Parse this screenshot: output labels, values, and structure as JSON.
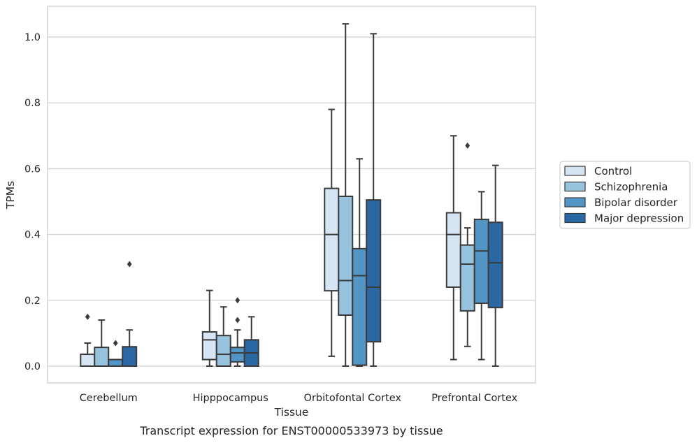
{
  "caption": "Transcript expression for ENST00000533973 by tissue",
  "chart_data": {
    "type": "box",
    "xlabel": "Tissue",
    "ylabel": "TPMs",
    "ylim": [
      -0.05,
      1.09
    ],
    "yticks": [
      0.0,
      0.2,
      0.4,
      0.6,
      0.8,
      1.0
    ],
    "yticklabels": [
      "0.0",
      "0.2",
      "0.4",
      "0.6",
      "0.8",
      "1.0"
    ],
    "grid": "horizontal",
    "legend_position": "right",
    "categories": [
      "Cerebellum",
      "Hipppocampus",
      "Orbitofontal Cortex",
      "Prefrontal Cortex"
    ],
    "series": [
      {
        "name": "Control",
        "color": "#d5e5f3",
        "boxes": [
          {
            "whislo": 0.0,
            "q1": 0.0,
            "med": 0.0,
            "q3": 0.036,
            "whishi": 0.07,
            "fliers": [
              0.15
            ]
          },
          {
            "whislo": 0.0,
            "q1": 0.02,
            "med": 0.08,
            "q3": 0.104,
            "whishi": 0.23,
            "fliers": []
          },
          {
            "whislo": 0.03,
            "q1": 0.229,
            "med": 0.4,
            "q3": 0.54,
            "whishi": 0.78,
            "fliers": []
          },
          {
            "whislo": 0.02,
            "q1": 0.24,
            "med": 0.4,
            "q3": 0.466,
            "whishi": 0.7,
            "fliers": []
          }
        ]
      },
      {
        "name": "Schizophrenia",
        "color": "#98c3de",
        "boxes": [
          {
            "whislo": 0.0,
            "q1": 0.0,
            "med": 0.0,
            "q3": 0.057,
            "whishi": 0.14,
            "fliers": []
          },
          {
            "whislo": 0.0,
            "q1": 0.0,
            "med": 0.036,
            "q3": 0.093,
            "whishi": 0.18,
            "fliers": []
          },
          {
            "whislo": 0.0,
            "q1": 0.155,
            "med": 0.26,
            "q3": 0.516,
            "whishi": 1.04,
            "fliers": []
          },
          {
            "whislo": 0.06,
            "q1": 0.168,
            "med": 0.31,
            "q3": 0.368,
            "whishi": 0.42,
            "fliers": [
              0.67
            ]
          }
        ]
      },
      {
        "name": "Bipolar disorder",
        "color": "#5396c6",
        "boxes": [
          {
            "whislo": 0.0,
            "q1": 0.0,
            "med": 0.0,
            "q3": 0.02,
            "whishi": 0.02,
            "fliers": [
              0.07
            ]
          },
          {
            "whislo": 0.0,
            "q1": 0.013,
            "med": 0.04,
            "q3": 0.057,
            "whishi": 0.11,
            "fliers": [
              0.14,
              0.2
            ]
          },
          {
            "whislo": 0.0,
            "q1": 0.003,
            "med": 0.275,
            "q3": 0.357,
            "whishi": 0.63,
            "fliers": []
          },
          {
            "whislo": 0.02,
            "q1": 0.191,
            "med": 0.35,
            "q3": 0.446,
            "whishi": 0.53,
            "fliers": []
          }
        ]
      },
      {
        "name": "Major depression",
        "color": "#2a67a3",
        "boxes": [
          {
            "whislo": 0.0,
            "q1": 0.0,
            "med": 0.0,
            "q3": 0.059,
            "whishi": 0.11,
            "fliers": [
              0.31
            ]
          },
          {
            "whislo": 0.0,
            "q1": 0.0,
            "med": 0.04,
            "q3": 0.08,
            "whishi": 0.15,
            "fliers": []
          },
          {
            "whislo": 0.0,
            "q1": 0.074,
            "med": 0.24,
            "q3": 0.505,
            "whishi": 1.01,
            "fliers": []
          },
          {
            "whislo": 0.0,
            "q1": 0.178,
            "med": 0.314,
            "q3": 0.437,
            "whishi": 0.61,
            "fliers": []
          }
        ]
      }
    ]
  }
}
